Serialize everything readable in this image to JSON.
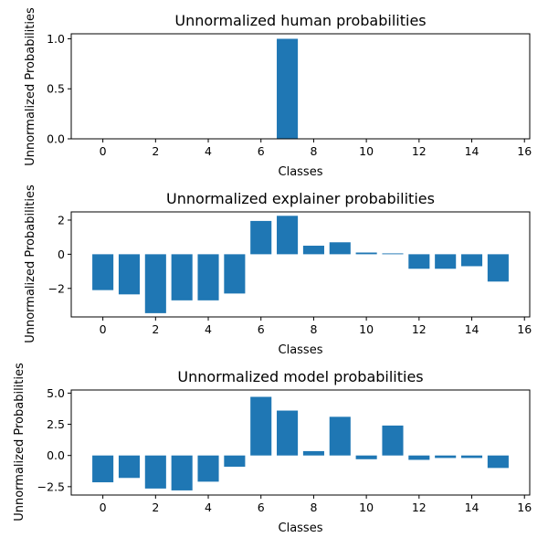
{
  "colors": {
    "bar": "#1f77b4",
    "axis": "#000000",
    "background": "#ffffff"
  },
  "chart_data": [
    {
      "type": "bar",
      "title": "Unnormalized human probabilities",
      "xlabel": "Classes",
      "ylabel": "Unnormalized Probabilities",
      "x": [
        0,
        1,
        2,
        3,
        4,
        5,
        6,
        7,
        8,
        9,
        10,
        11,
        12,
        13,
        14,
        15
      ],
      "values": [
        0,
        0,
        0,
        0,
        0,
        0,
        0,
        1.0,
        0,
        0,
        0,
        0,
        0,
        0,
        0,
        0
      ],
      "xlim": [
        -1.2,
        16.2
      ],
      "ylim": [
        0,
        1.05
      ],
      "xticks": [
        0,
        2,
        4,
        6,
        8,
        10,
        12,
        14,
        16
      ],
      "yticks": [
        0.0,
        0.5,
        1.0
      ],
      "ytick_labels": [
        "0.0",
        "0.5",
        "1.0"
      ],
      "grid": false,
      "legend": "none"
    },
    {
      "type": "bar",
      "title": "Unnormalized explainer probabilities",
      "xlabel": "Classes",
      "ylabel": "Unnormalized Probabilities",
      "x": [
        0,
        1,
        2,
        3,
        4,
        5,
        6,
        7,
        8,
        9,
        10,
        11,
        12,
        13,
        14,
        15
      ],
      "values": [
        -2.1,
        -2.35,
        -3.45,
        -2.7,
        -2.7,
        -2.3,
        1.95,
        2.25,
        0.5,
        0.7,
        0.1,
        0.05,
        -0.85,
        -0.85,
        -0.7,
        -1.6
      ],
      "xlim": [
        -1.2,
        16.2
      ],
      "ylim": [
        -3.67,
        2.48
      ],
      "xticks": [
        0,
        2,
        4,
        6,
        8,
        10,
        12,
        14,
        16
      ],
      "yticks": [
        -2,
        0,
        2
      ],
      "ytick_labels": [
        "−2",
        "0",
        "2"
      ],
      "grid": false,
      "legend": "none"
    },
    {
      "type": "bar",
      "title": "Unnormalized model probabilities",
      "xlabel": "Classes",
      "ylabel": "Unnormalized Probabilities",
      "x": [
        0,
        1,
        2,
        3,
        4,
        5,
        6,
        7,
        8,
        9,
        10,
        11,
        12,
        13,
        14,
        15
      ],
      "values": [
        -2.15,
        -1.8,
        -2.65,
        -2.8,
        -2.1,
        -0.9,
        4.7,
        3.6,
        0.35,
        3.1,
        -0.3,
        2.4,
        -0.35,
        -0.2,
        -0.2,
        -1.0
      ],
      "xlim": [
        -1.2,
        16.2
      ],
      "ylim": [
        -3.17,
        5.25
      ],
      "xticks": [
        0,
        2,
        4,
        6,
        8,
        10,
        12,
        14,
        16
      ],
      "yticks": [
        -2.5,
        0.0,
        2.5,
        5.0
      ],
      "ytick_labels": [
        "−2.5",
        "0.0",
        "2.5",
        "5.0"
      ],
      "grid": false,
      "legend": "none"
    }
  ]
}
